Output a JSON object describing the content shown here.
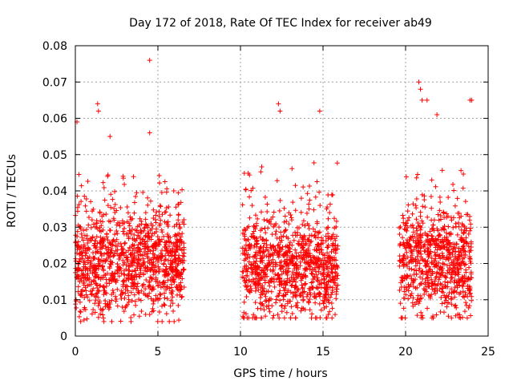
{
  "chart_data": {
    "type": "scatter",
    "title": "Day 172 of 2018, Rate Of TEC Index for receiver ab49",
    "xlabel": "GPS time / hours",
    "ylabel": "ROTI / TECUs",
    "xlim": [
      0,
      25
    ],
    "ylim": [
      0,
      0.08
    ],
    "x_ticks": [
      0,
      5,
      10,
      15,
      20,
      25
    ],
    "x_tick_labels": [
      "0",
      "5",
      "10",
      "15",
      "20",
      "25"
    ],
    "y_ticks": [
      0,
      0.01,
      0.02,
      0.03,
      0.04,
      0.05,
      0.06,
      0.07,
      0.08
    ],
    "y_tick_labels": [
      "0",
      "0.01",
      "0.02",
      "0.03",
      "0.04",
      "0.05",
      "0.06",
      "0.07",
      "0.08"
    ],
    "grid": true,
    "marker": "+",
    "marker_color": "#ff0000",
    "series": [
      {
        "name": "ROTI",
        "segments": [
          {
            "x_start": 0.0,
            "x_end": 6.6,
            "median": 0.02,
            "spread": 0.007,
            "min": 0.004,
            "typical_max": 0.045
          },
          {
            "x_start": 10.1,
            "x_end": 15.9,
            "median": 0.018,
            "spread": 0.007,
            "min": 0.005,
            "typical_max": 0.048
          },
          {
            "x_start": 19.6,
            "x_end": 24.0,
            "median": 0.02,
            "spread": 0.007,
            "min": 0.005,
            "typical_max": 0.046
          }
        ],
        "notable_points": [
          {
            "x": 0.1,
            "y": 0.059
          },
          {
            "x": 1.35,
            "y": 0.064
          },
          {
            "x": 1.4,
            "y": 0.062
          },
          {
            "x": 2.1,
            "y": 0.055
          },
          {
            "x": 4.5,
            "y": 0.076
          },
          {
            "x": 4.5,
            "y": 0.056
          },
          {
            "x": 12.3,
            "y": 0.064
          },
          {
            "x": 12.4,
            "y": 0.062
          },
          {
            "x": 14.8,
            "y": 0.062
          },
          {
            "x": 20.8,
            "y": 0.07
          },
          {
            "x": 20.9,
            "y": 0.068
          },
          {
            "x": 21.0,
            "y": 0.065
          },
          {
            "x": 21.3,
            "y": 0.065
          },
          {
            "x": 21.9,
            "y": 0.061
          },
          {
            "x": 23.9,
            "y": 0.065
          },
          {
            "x": 24.0,
            "y": 0.065
          }
        ]
      }
    ]
  }
}
